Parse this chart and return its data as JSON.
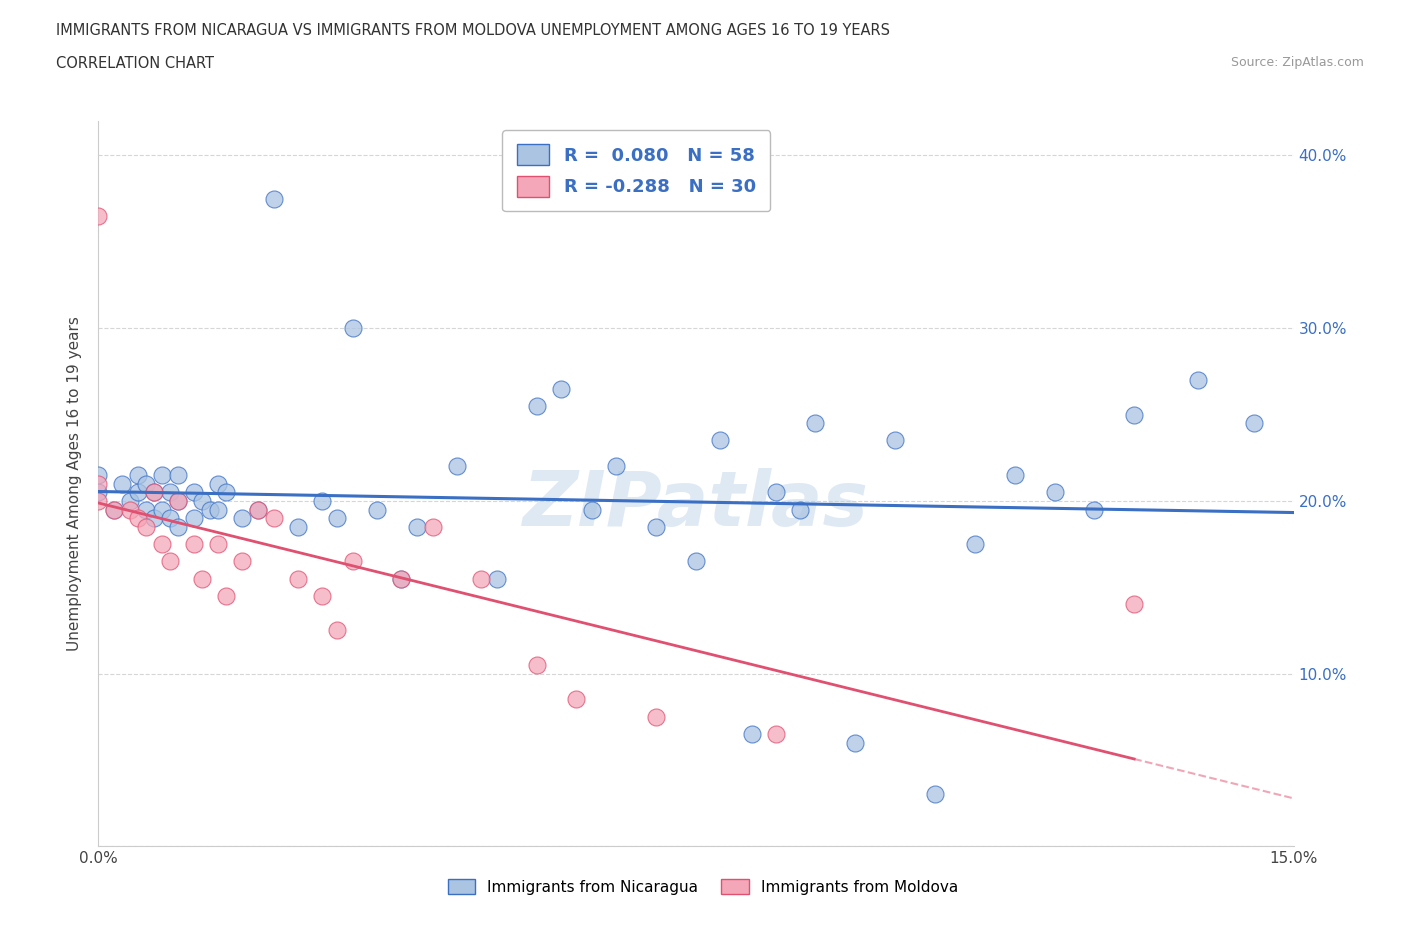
{
  "title_line1": "IMMIGRANTS FROM NICARAGUA VS IMMIGRANTS FROM MOLDOVA UNEMPLOYMENT AMONG AGES 16 TO 19 YEARS",
  "title_line2": "CORRELATION CHART",
  "source_text": "Source: ZipAtlas.com",
  "ylabel": "Unemployment Among Ages 16 to 19 years",
  "watermark": "ZIPatlas",
  "r_nicaragua": 0.08,
  "n_nicaragua": 58,
  "r_moldova": -0.288,
  "n_moldova": 30,
  "xlim": [
    0.0,
    0.15
  ],
  "ylim": [
    0.0,
    0.42
  ],
  "color_nicaragua": "#aac4e2",
  "color_moldova": "#f4a7b9",
  "line_color_nicaragua": "#3a6fc4",
  "line_color_moldova": "#e05070",
  "bg_color": "#ffffff",
  "grid_color": "#cccccc",
  "nicaragua_x": [
    0.0,
    0.0,
    0.002,
    0.003,
    0.004,
    0.005,
    0.005,
    0.006,
    0.006,
    0.007,
    0.007,
    0.008,
    0.008,
    0.009,
    0.009,
    0.01,
    0.01,
    0.01,
    0.012,
    0.012,
    0.013,
    0.014,
    0.015,
    0.015,
    0.016,
    0.018,
    0.02,
    0.022,
    0.025,
    0.028,
    0.03,
    0.032,
    0.035,
    0.038,
    0.04,
    0.045,
    0.05,
    0.055,
    0.058,
    0.062,
    0.065,
    0.07,
    0.075,
    0.078,
    0.082,
    0.085,
    0.088,
    0.09,
    0.095,
    0.1,
    0.105,
    0.11,
    0.115,
    0.12,
    0.125,
    0.13,
    0.138,
    0.145
  ],
  "nicaragua_y": [
    0.205,
    0.215,
    0.195,
    0.21,
    0.2,
    0.205,
    0.215,
    0.195,
    0.21,
    0.19,
    0.205,
    0.195,
    0.215,
    0.19,
    0.205,
    0.185,
    0.2,
    0.215,
    0.19,
    0.205,
    0.2,
    0.195,
    0.21,
    0.195,
    0.205,
    0.19,
    0.195,
    0.375,
    0.185,
    0.2,
    0.19,
    0.3,
    0.195,
    0.155,
    0.185,
    0.22,
    0.155,
    0.255,
    0.265,
    0.195,
    0.22,
    0.185,
    0.165,
    0.235,
    0.065,
    0.205,
    0.195,
    0.245,
    0.06,
    0.235,
    0.03,
    0.175,
    0.215,
    0.205,
    0.195,
    0.25,
    0.27,
    0.245
  ],
  "moldova_x": [
    0.0,
    0.0,
    0.0,
    0.002,
    0.004,
    0.005,
    0.006,
    0.007,
    0.008,
    0.009,
    0.01,
    0.012,
    0.013,
    0.015,
    0.016,
    0.018,
    0.02,
    0.022,
    0.025,
    0.028,
    0.03,
    0.032,
    0.038,
    0.042,
    0.048,
    0.055,
    0.06,
    0.07,
    0.085,
    0.13
  ],
  "moldova_y": [
    0.365,
    0.21,
    0.2,
    0.195,
    0.195,
    0.19,
    0.185,
    0.205,
    0.175,
    0.165,
    0.2,
    0.175,
    0.155,
    0.175,
    0.145,
    0.165,
    0.195,
    0.19,
    0.155,
    0.145,
    0.125,
    0.165,
    0.155,
    0.185,
    0.155,
    0.105,
    0.085,
    0.075,
    0.065,
    0.14
  ]
}
